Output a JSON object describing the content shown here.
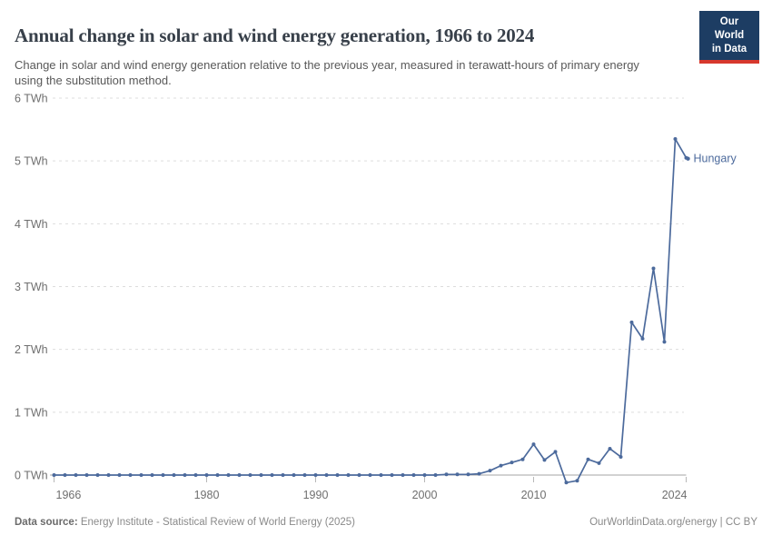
{
  "header": {
    "title": "Annual change in solar and wind energy generation, 1966 to 2024",
    "subtitle": "Change in solar and wind energy generation relative to the previous year, measured in terawatt-hours of primary energy using the substitution method.",
    "logo": {
      "line1": "Our World",
      "line2": "in Data"
    }
  },
  "chart_data": {
    "type": "line",
    "title": "Annual change in solar and wind energy generation, 1966 to 2024",
    "unit": "TWh",
    "xlim": [
      1966,
      2024
    ],
    "ylim": [
      0,
      6
    ],
    "x_ticks": [
      1966,
      1980,
      1990,
      2000,
      2010,
      2024
    ],
    "y_ticks": [
      0,
      1,
      2,
      3,
      4,
      5,
      6
    ],
    "y_tick_suffix": " TWh",
    "grid": "horizontal-dashed",
    "end_label": "Hungary",
    "x": [
      1966,
      1967,
      1968,
      1969,
      1970,
      1971,
      1972,
      1973,
      1974,
      1975,
      1976,
      1977,
      1978,
      1979,
      1980,
      1981,
      1982,
      1983,
      1984,
      1985,
      1986,
      1987,
      1988,
      1989,
      1990,
      1991,
      1992,
      1993,
      1994,
      1995,
      1996,
      1997,
      1998,
      1999,
      2000,
      2001,
      2002,
      2003,
      2004,
      2005,
      2006,
      2007,
      2008,
      2009,
      2010,
      2011,
      2012,
      2013,
      2014,
      2015,
      2016,
      2017,
      2018,
      2019,
      2020,
      2021,
      2022,
      2023,
      2024
    ],
    "series": [
      {
        "name": "Hungary",
        "color": "#4c6a9c",
        "values": [
          0,
          0,
          0,
          0,
          0,
          0,
          0,
          0,
          0,
          0,
          0,
          0,
          0,
          0,
          0,
          0,
          0,
          0,
          0,
          0,
          0,
          0,
          0,
          0,
          0,
          0,
          0,
          0,
          0,
          0,
          0,
          0,
          0,
          0,
          0,
          0,
          0.01,
          0.01,
          0.01,
          0.02,
          0.07,
          0.15,
          0.2,
          0.25,
          0.49,
          0.24,
          0.37,
          -0.12,
          -0.09,
          0.25,
          0.19,
          0.42,
          0.29,
          2.43,
          2.17,
          3.29,
          2.12,
          5.35,
          5.05
        ]
      }
    ]
  },
  "footer": {
    "source_label": "Data source:",
    "source_text": " Energy Institute - Statistical Review of World Energy (2025)",
    "credit": "OurWorldinData.org/energy | CC BY"
  },
  "colors": {
    "line": "#4c6a9c",
    "grid": "#dddddd",
    "axis": "#a6a6a6",
    "tick_mark": "#b8b8b8",
    "tick_text": "#6f6f6f",
    "logo_bg": "#1d3d63",
    "logo_accent": "#d7382d"
  }
}
